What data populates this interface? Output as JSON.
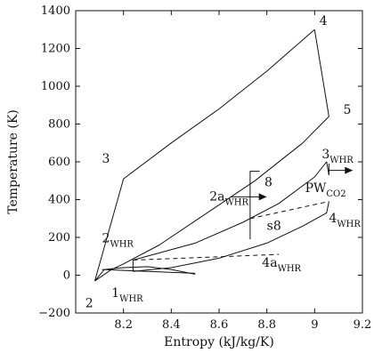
{
  "chart_data": {
    "type": "line",
    "xlabel": "Entropy (kJ/kg/K)",
    "ylabel": "Temperature (K)",
    "xlim": [
      8.0,
      9.2
    ],
    "ylim": [
      -200,
      1400
    ],
    "xticks": [
      8.2,
      8.4,
      8.6,
      8.8,
      9.0,
      9.2
    ],
    "yticks": [
      -200,
      0,
      200,
      400,
      600,
      800,
      1000,
      1200,
      1400
    ],
    "xtick_labels": [
      "8.2",
      "8.4",
      "8.6",
      "8.8",
      "9",
      "9.2"
    ],
    "ytick_labels": [
      "−200",
      "0",
      "200",
      "400",
      "600",
      "800",
      "1000",
      "1200",
      "1400"
    ],
    "grid": false,
    "series": [
      {
        "style": "solid",
        "x": [
          8.08,
          8.2
        ],
        "y": [
          -30,
          510
        ]
      },
      {
        "style": "solid",
        "x": [
          8.2,
          8.4,
          8.6,
          8.8,
          9.0
        ],
        "y": [
          510,
          700,
          880,
          1080,
          1300
        ]
      },
      {
        "style": "solid",
        "x": [
          9.0,
          9.06
        ],
        "y": [
          1300,
          840
        ]
      },
      {
        "style": "solid",
        "x": [
          9.06,
          8.95,
          8.75,
          8.55,
          8.35,
          8.2,
          8.15,
          8.08
        ],
        "y": [
          840,
          700,
          500,
          330,
          160,
          60,
          30,
          -30
        ]
      },
      {
        "style": "solid",
        "x": [
          8.08,
          8.12,
          8.2,
          8.3,
          8.4,
          8.5
        ],
        "y": [
          -30,
          30,
          40,
          45,
          30,
          5
        ]
      },
      {
        "style": "solid",
        "x": [
          8.11,
          8.3,
          8.5
        ],
        "y": [
          30,
          20,
          10
        ]
      },
      {
        "style": "solid",
        "x": [
          8.24,
          8.5,
          8.7,
          8.85,
          9.0,
          9.05,
          9.06
        ],
        "y": [
          80,
          170,
          280,
          380,
          520,
          600,
          530
        ]
      },
      {
        "style": "solid",
        "x": [
          8.24,
          8.4,
          8.6,
          8.8,
          8.95,
          9.05,
          9.06
        ],
        "y": [
          20,
          40,
          90,
          170,
          260,
          330,
          390
        ]
      },
      {
        "style": "solid",
        "x": [
          8.24,
          8.24
        ],
        "y": [
          20,
          80
        ]
      },
      {
        "style": "dashed",
        "x": [
          8.24,
          8.55,
          8.85
        ],
        "y": [
          80,
          95,
          110
        ]
      },
      {
        "style": "dashed",
        "x": [
          8.73,
          8.95,
          9.06
        ],
        "y": [
          300,
          360,
          390
        ]
      },
      {
        "style": "solid",
        "x": [
          8.73,
          8.73,
          8.77
        ],
        "y": [
          190,
          550,
          550
        ]
      },
      {
        "style": "solid",
        "x": [
          9.06,
          9.06
        ],
        "y": [
          530,
          590
        ]
      }
    ],
    "arrows": [
      {
        "x1": 8.65,
        "y1": 415,
        "x2": 8.8,
        "y2": 415
      },
      {
        "x1": 9.06,
        "y1": 555,
        "x2": 9.16,
        "y2": 555
      }
    ],
    "state_labels": [
      {
        "x": 9.02,
        "y": 1325,
        "text": "4",
        "sub": ""
      },
      {
        "x": 9.12,
        "y": 855,
        "text": "5",
        "sub": ""
      },
      {
        "x": 8.11,
        "y": 595,
        "text": "3",
        "sub": ""
      },
      {
        "x": 9.03,
        "y": 620,
        "text": "3",
        "sub": "WHR"
      },
      {
        "x": 8.79,
        "y": 470,
        "text": "8",
        "sub": ""
      },
      {
        "x": 8.96,
        "y": 440,
        "text": "PW",
        "sub": "CO2"
      },
      {
        "x": 8.56,
        "y": 395,
        "text": "2a",
        "sub": "WHR"
      },
      {
        "x": 8.8,
        "y": 240,
        "text": "s8",
        "sub": ""
      },
      {
        "x": 9.06,
        "y": 280,
        "text": "4",
        "sub": "WHR"
      },
      {
        "x": 8.11,
        "y": 175,
        "text": "2",
        "sub": "WHR"
      },
      {
        "x": 8.78,
        "y": 45,
        "text": "4a",
        "sub": "WHR"
      },
      {
        "x": 8.15,
        "y": -115,
        "text": "1",
        "sub": "WHR"
      },
      {
        "x": 8.04,
        "y": -170,
        "text": "2",
        "sub": ""
      }
    ]
  }
}
